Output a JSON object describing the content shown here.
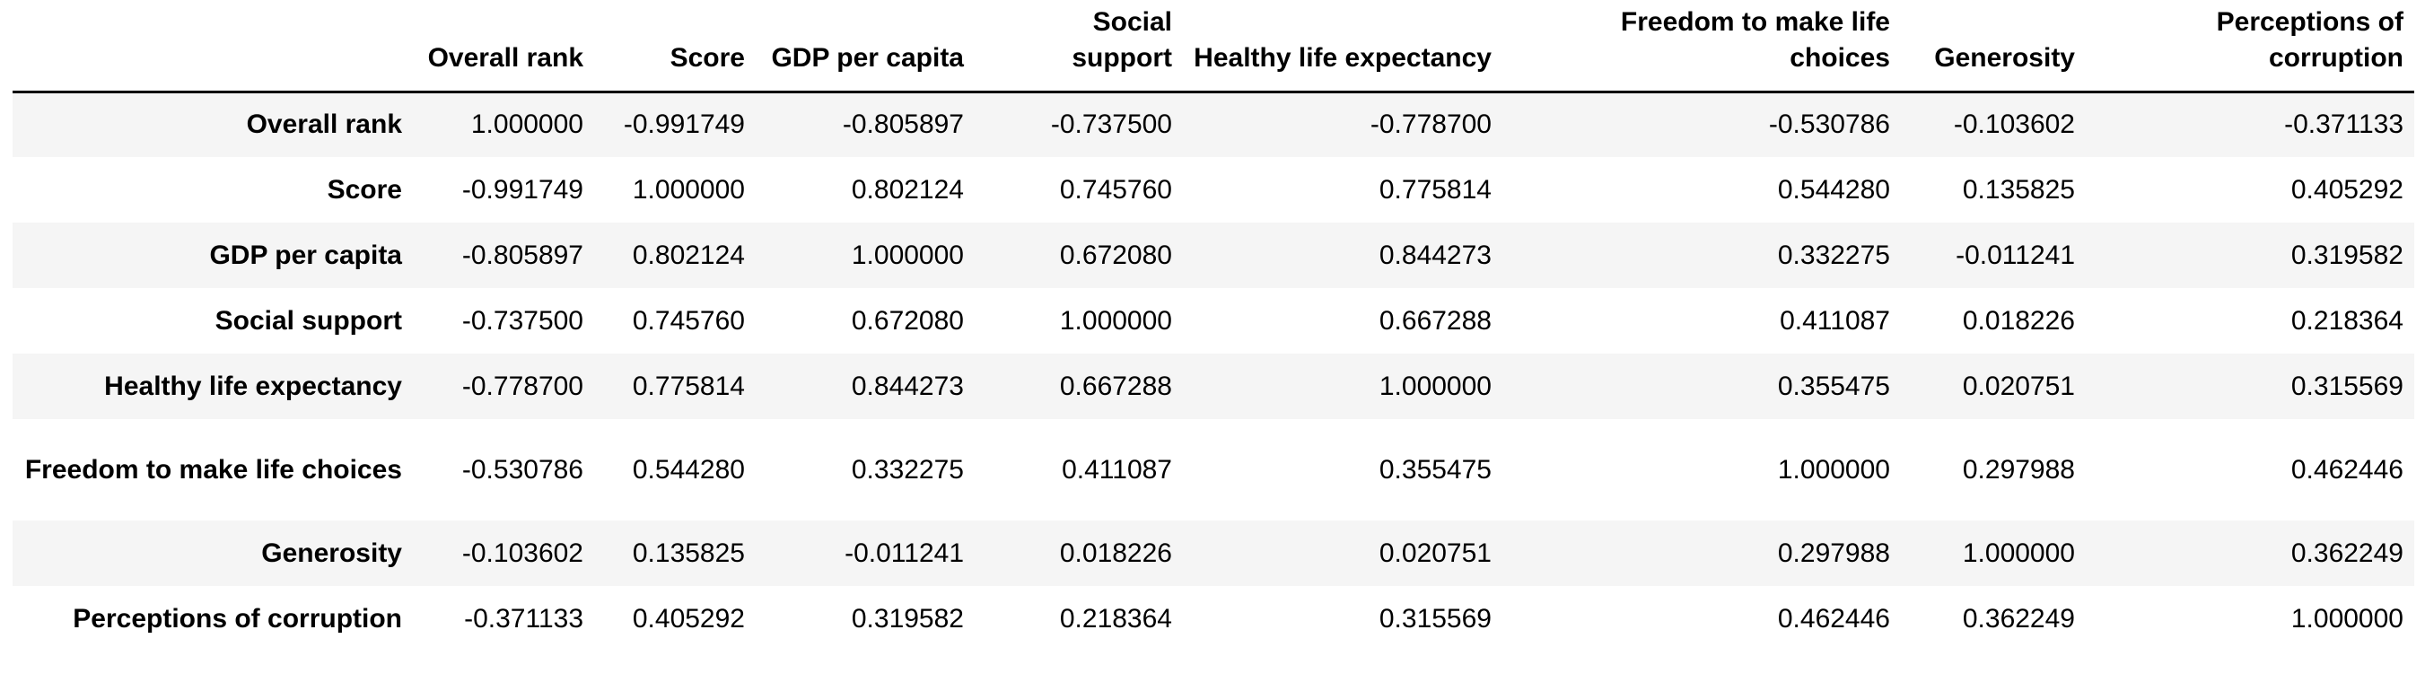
{
  "table": {
    "columns": [
      "Overall rank",
      "Score",
      "GDP per capita",
      "Social support",
      "Healthy life expectancy",
      "Freedom to make life choices",
      "Generosity",
      "Perceptions of corruption"
    ],
    "rows": [
      {
        "label": "Overall rank",
        "values": [
          "1.000000",
          "-0.991749",
          "-0.805897",
          "-0.737500",
          "-0.778700",
          "-0.530786",
          "-0.103602",
          "-0.371133"
        ]
      },
      {
        "label": "Score",
        "values": [
          "-0.991749",
          "1.000000",
          "0.802124",
          "0.745760",
          "0.775814",
          "0.544280",
          "0.135825",
          "0.405292"
        ]
      },
      {
        "label": "GDP per capita",
        "values": [
          "-0.805897",
          "0.802124",
          "1.000000",
          "0.672080",
          "0.844273",
          "0.332275",
          "-0.011241",
          "0.319582"
        ]
      },
      {
        "label": "Social support",
        "values": [
          "-0.737500",
          "0.745760",
          "0.672080",
          "1.000000",
          "0.667288",
          "0.411087",
          "0.018226",
          "0.218364"
        ]
      },
      {
        "label": "Healthy life expectancy",
        "values": [
          "-0.778700",
          "0.775814",
          "0.844273",
          "0.667288",
          "1.000000",
          "0.355475",
          "0.020751",
          "0.315569"
        ]
      },
      {
        "label": "Freedom to make life choices",
        "values": [
          "-0.530786",
          "0.544280",
          "0.332275",
          "0.411087",
          "0.355475",
          "1.000000",
          "0.297988",
          "0.462446"
        ]
      },
      {
        "label": "Generosity",
        "values": [
          "-0.103602",
          "0.135825",
          "-0.011241",
          "0.018226",
          "0.020751",
          "0.297988",
          "1.000000",
          "0.362249"
        ]
      },
      {
        "label": "Perceptions of corruption",
        "values": [
          "-0.371133",
          "0.405292",
          "0.319582",
          "0.218364",
          "0.315569",
          "0.462446",
          "0.362249",
          "1.000000"
        ]
      }
    ]
  }
}
